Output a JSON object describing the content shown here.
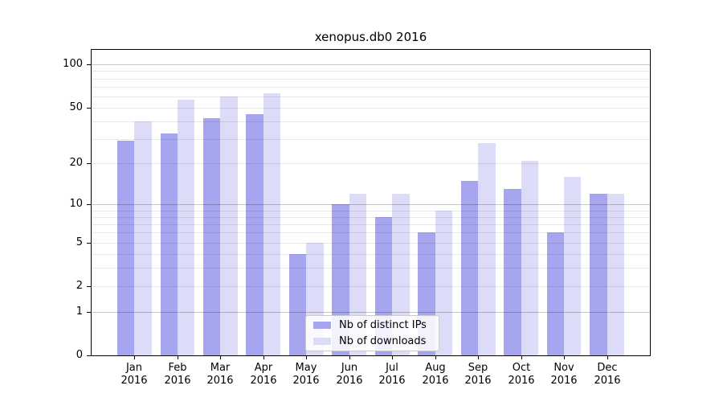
{
  "chart_data": {
    "type": "bar",
    "title": "xenopus.db0 2016",
    "categories": [
      "Jan",
      "Feb",
      "Mar",
      "Apr",
      "May",
      "Jun",
      "Jul",
      "Aug",
      "Sep",
      "Oct",
      "Nov",
      "Dec"
    ],
    "category_year": "2016",
    "series": [
      {
        "name": "Nb of distinct IPs",
        "color": "#a5a5f0",
        "values": [
          29,
          33,
          42,
          45,
          4,
          10,
          8,
          6,
          15,
          13,
          6,
          12
        ]
      },
      {
        "name": "Nb of downloads",
        "color": "#dcdcf9",
        "values": [
          40,
          57,
          60,
          63,
          5,
          12,
          12,
          9,
          28,
          21,
          16,
          12
        ]
      }
    ],
    "yaxis": {
      "scale": "log1p",
      "ticks": [
        0,
        1,
        2,
        5,
        10,
        20,
        50,
        100
      ],
      "major_gridlines": [
        1,
        10,
        100
      ],
      "minor_gridlines": [
        2,
        3,
        4,
        5,
        6,
        7,
        8,
        9,
        20,
        30,
        40,
        50,
        60,
        70,
        80,
        90
      ],
      "range": [
        0,
        130
      ]
    },
    "xlabel": "",
    "ylabel": "",
    "grid": true,
    "legend_position": "lower center"
  },
  "colors": {
    "bar_distinct_ips": "#a5a5f0",
    "bar_downloads": "#dcdcf9",
    "grid_major": "#c0c0c0",
    "grid_minor": "#e8e8e8",
    "spine": "#000000",
    "background": "#ffffff",
    "text": "#000000"
  }
}
